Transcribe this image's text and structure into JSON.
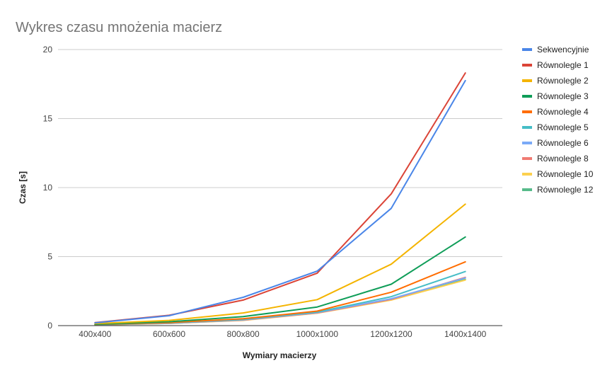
{
  "chart_data": {
    "type": "line",
    "title": "Wykres czasu mnożenia macierz",
    "xlabel": "Wymiary macierzy",
    "ylabel": "Czas [s]",
    "categories": [
      "400x400",
      "600x600",
      "800x800",
      "1000x1000",
      "1200x1200",
      "1400x1400"
    ],
    "ylim": [
      0,
      20
    ],
    "yticks": [
      0,
      5,
      10,
      15,
      20
    ],
    "grid": true,
    "legend_position": "right",
    "series": [
      {
        "name": "Sekwencyjnie",
        "color": "#4a86e8",
        "values": [
          0.2,
          0.72,
          2.05,
          3.95,
          8.5,
          17.75
        ]
      },
      {
        "name": "Równolegle 1",
        "color": "#db4437",
        "values": [
          0.22,
          0.75,
          1.85,
          3.8,
          9.55,
          18.3
        ]
      },
      {
        "name": "Równolegle 2",
        "color": "#f4b400",
        "values": [
          0.15,
          0.38,
          0.92,
          1.88,
          4.45,
          8.8
        ]
      },
      {
        "name": "Równolegle 3",
        "color": "#0f9d58",
        "values": [
          0.1,
          0.28,
          0.65,
          1.35,
          3.0,
          6.42
        ]
      },
      {
        "name": "Równolegle 4",
        "color": "#ff6d01",
        "values": [
          0.08,
          0.22,
          0.5,
          1.05,
          2.42,
          4.62
        ]
      },
      {
        "name": "Równolegle 5",
        "color": "#46bdc6",
        "values": [
          0.07,
          0.2,
          0.45,
          0.98,
          2.1,
          3.92
        ]
      },
      {
        "name": "Równolegle 6",
        "color": "#7baaf7",
        "values": [
          0.06,
          0.18,
          0.42,
          0.95,
          1.95,
          3.45
        ]
      },
      {
        "name": "Równolegle 8",
        "color": "#f07b72",
        "values": [
          0.06,
          0.17,
          0.4,
          0.92,
          1.9,
          3.5
        ]
      },
      {
        "name": "Równolegle 10",
        "color": "#fcd04f",
        "values": [
          0.05,
          0.16,
          0.38,
          0.9,
          1.85,
          3.3
        ]
      },
      {
        "name": "Równolegle 12",
        "color": "#57bb8a",
        "values": [
          0.05,
          0.16,
          0.4,
          0.92,
          1.88,
          3.35
        ]
      }
    ]
  }
}
